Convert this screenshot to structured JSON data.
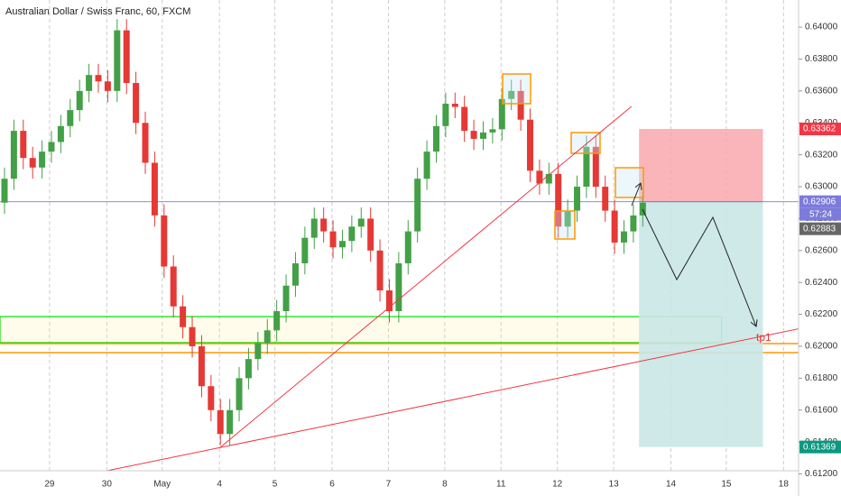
{
  "chart_data": {
    "type": "candlestick",
    "title": "Australian Dollar / Swiss Franc, 60, FXCM",
    "x": [
      0,
      1,
      2,
      3,
      4,
      5,
      6,
      7,
      8,
      9,
      10,
      11,
      12,
      13,
      14,
      15,
      16,
      17,
      18,
      19,
      20,
      21,
      22,
      23,
      24,
      25,
      26,
      27,
      28,
      29,
      30,
      31,
      32,
      33,
      34,
      35,
      36,
      37,
      38,
      39,
      40,
      41,
      42,
      43,
      44,
      45,
      46,
      47,
      48,
      49,
      50,
      51,
      52,
      53,
      54,
      55,
      56,
      57,
      58,
      59,
      60,
      61,
      62,
      63,
      64,
      65,
      66,
      67,
      68
    ],
    "open": [
      0.629,
      0.6305,
      0.6335,
      0.6318,
      0.6312,
      0.6322,
      0.6328,
      0.6338,
      0.6348,
      0.636,
      0.637,
      0.6366,
      0.636,
      0.6398,
      0.6365,
      0.634,
      0.6315,
      0.6282,
      0.625,
      0.6225,
      0.6212,
      0.62,
      0.6175,
      0.616,
      0.6145,
      0.616,
      0.618,
      0.6192,
      0.6202,
      0.621,
      0.6222,
      0.6238,
      0.6252,
      0.6268,
      0.628,
      0.6272,
      0.6262,
      0.6266,
      0.6275,
      0.628,
      0.626,
      0.6235,
      0.6222,
      0.6252,
      0.6272,
      0.6305,
      0.6322,
      0.6338,
      0.6352,
      0.635,
      0.6335,
      0.633,
      0.6334,
      0.6336,
      0.6355,
      0.636,
      0.6342,
      0.631,
      0.6302,
      0.6308,
      0.6275,
      0.6285,
      0.63,
      0.6325,
      0.63,
      0.6285,
      0.6265,
      0.6272,
      0.6282
    ],
    "high": [
      0.6312,
      0.6342,
      0.6342,
      0.6325,
      0.6329,
      0.6335,
      0.6345,
      0.6355,
      0.6367,
      0.6377,
      0.6377,
      0.6373,
      0.6405,
      0.6405,
      0.6372,
      0.6347,
      0.6322,
      0.6289,
      0.6257,
      0.6232,
      0.6219,
      0.6207,
      0.6182,
      0.6167,
      0.6167,
      0.6187,
      0.6199,
      0.6209,
      0.6217,
      0.6229,
      0.6245,
      0.6259,
      0.6275,
      0.6287,
      0.6287,
      0.6279,
      0.6273,
      0.6282,
      0.6287,
      0.6287,
      0.6267,
      0.6242,
      0.6259,
      0.6279,
      0.6312,
      0.6329,
      0.6345,
      0.6359,
      0.6359,
      0.6357,
      0.6342,
      0.6341,
      0.6343,
      0.6362,
      0.6367,
      0.6367,
      0.6349,
      0.6317,
      0.6315,
      0.6315,
      0.6292,
      0.6307,
      0.6332,
      0.6332,
      0.6307,
      0.6292,
      0.6279,
      0.6289,
      0.6297
    ],
    "low": [
      0.6283,
      0.6298,
      0.6311,
      0.6305,
      0.6305,
      0.6315,
      0.6321,
      0.6331,
      0.6341,
      0.6353,
      0.6359,
      0.6353,
      0.6353,
      0.6358,
      0.6333,
      0.6308,
      0.6275,
      0.6243,
      0.6218,
      0.6205,
      0.6193,
      0.6168,
      0.6153,
      0.6138,
      0.6138,
      0.6153,
      0.6173,
      0.6185,
      0.6195,
      0.6203,
      0.6215,
      0.6231,
      0.6245,
      0.6261,
      0.6265,
      0.6255,
      0.6255,
      0.6259,
      0.6268,
      0.6253,
      0.6228,
      0.6215,
      0.6215,
      0.6245,
      0.6265,
      0.6298,
      0.6315,
      0.6331,
      0.6343,
      0.6328,
      0.6323,
      0.6323,
      0.6327,
      0.6329,
      0.6348,
      0.6335,
      0.6303,
      0.6295,
      0.6295,
      0.6268,
      0.6268,
      0.6278,
      0.6293,
      0.6293,
      0.6278,
      0.6258,
      0.6258,
      0.6265,
      0.6275
    ],
    "close": [
      0.6305,
      0.6335,
      0.6318,
      0.6312,
      0.6322,
      0.6328,
      0.6338,
      0.6348,
      0.636,
      0.637,
      0.6366,
      0.636,
      0.6398,
      0.6365,
      0.634,
      0.6315,
      0.6282,
      0.625,
      0.6225,
      0.6212,
      0.62,
      0.6175,
      0.616,
      0.6145,
      0.616,
      0.618,
      0.6192,
      0.6202,
      0.621,
      0.6222,
      0.6238,
      0.6252,
      0.6268,
      0.628,
      0.6272,
      0.6262,
      0.6266,
      0.6275,
      0.628,
      0.626,
      0.6235,
      0.6222,
      0.6252,
      0.6272,
      0.6305,
      0.6322,
      0.6338,
      0.6352,
      0.635,
      0.6335,
      0.633,
      0.6334,
      0.6336,
      0.6355,
      0.636,
      0.6342,
      0.631,
      0.6302,
      0.6308,
      0.6275,
      0.6285,
      0.63,
      0.6325,
      0.63,
      0.6285,
      0.6265,
      0.6272,
      0.6282,
      0.629
    ],
    "up_color": "#43a047",
    "down_color": "#e53935",
    "xlim": [
      -0.48,
      84.6
    ],
    "xticks": [
      {
        "value": 4.8,
        "label": "29"
      },
      {
        "value": 10.9,
        "label": "30"
      },
      {
        "value": 16.8,
        "label": "May"
      },
      {
        "value": 22.9,
        "label": "4"
      },
      {
        "value": 28.8,
        "label": "5"
      },
      {
        "value": 34.9,
        "label": "6"
      },
      {
        "value": 40.9,
        "label": "7"
      },
      {
        "value": 46.9,
        "label": "8"
      },
      {
        "value": 52.9,
        "label": "11"
      },
      {
        "value": 58.9,
        "label": "12"
      },
      {
        "value": 64.9,
        "label": "13"
      },
      {
        "value": 71,
        "label": "14"
      },
      {
        "value": 76.9,
        "label": "15"
      },
      {
        "value": 83,
        "label": "18"
      }
    ],
    "ylim": [
      0.6122,
      0.6417
    ],
    "yticks": [
      {
        "value": 0.612,
        "label": "0.61200"
      },
      {
        "value": 0.614,
        "label": "0.61400"
      },
      {
        "value": 0.616,
        "label": "0.61600"
      },
      {
        "value": 0.618,
        "label": "0.61800"
      },
      {
        "value": 0.62,
        "label": "0.62000"
      },
      {
        "value": 0.622,
        "label": "0.62200"
      },
      {
        "value": 0.624,
        "label": "0.62400"
      },
      {
        "value": 0.626,
        "label": "0.62600"
      },
      {
        "value": 0.628,
        "label": "0.62800"
      },
      {
        "value": 0.63,
        "label": "0.63000"
      },
      {
        "value": 0.632,
        "label": "0.63200"
      },
      {
        "value": 0.634,
        "label": "0.63400"
      },
      {
        "value": 0.636,
        "label": "0.63600"
      },
      {
        "value": 0.638,
        "label": "0.63800"
      },
      {
        "value": 0.64,
        "label": "0.64000"
      }
    ],
    "grid": "x",
    "last_price": 0.62906,
    "last_price_color": "#7b7bdb",
    "countdown": "57:24",
    "bid_price": 0.62883,
    "zone": {
      "x": [
        -0.48,
        76.4
      ],
      "y": [
        0.62023,
        0.62186
      ],
      "color": "#00e000"
    },
    "hlines": [
      {
        "value": 0.62017,
        "color": "#ff9800"
      },
      {
        "value": 0.6196,
        "color": "#ff9800"
      }
    ],
    "trendlines": [
      {
        "x": [
          22.9,
          66.8
        ],
        "y": [
          0.61362,
          0.63503
        ],
        "color": "#f23645"
      },
      {
        "x": [
          9.1,
          89.1
        ],
        "y": [
          0.61198,
          0.62164
        ],
        "color": "#f23645"
      }
    ],
    "position": {
      "x": [
        67.6,
        80.8
      ],
      "stop": 0.63362,
      "entry": 0.62906,
      "target": 0.61369,
      "stop_color": "#f7a3a8",
      "target_color": "#c9e7e5",
      "label": "tp1"
    }
  }
}
